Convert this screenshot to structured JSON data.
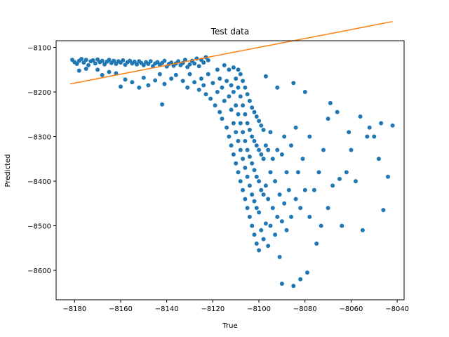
{
  "chart_data": {
    "type": "scatter",
    "title": "Test data",
    "xlabel": "True",
    "ylabel": "Predicted",
    "xlim": [
      -8188,
      -8037
    ],
    "ylim": [
      -8666,
      -8085
    ],
    "x_ticks": [
      -8180,
      -8160,
      -8140,
      -8120,
      -8100,
      -8080,
      -8060,
      -8040
    ],
    "y_ticks": [
      -8100,
      -8200,
      -8300,
      -8400,
      -8500,
      -8600
    ],
    "x_tick_labels": [
      "−8180",
      "−8160",
      "−8140",
      "−8120",
      "−8100",
      "−8080",
      "−8060",
      "−8040"
    ],
    "y_tick_labels": [
      "−8100",
      "−8200",
      "−8300",
      "−8400",
      "−8500",
      "−8600"
    ],
    "grid": false,
    "series": [
      {
        "type": "scatter",
        "color": "#1f77b4",
        "points": [
          [
            -8181,
            -8128
          ],
          [
            -8180,
            -8133
          ],
          [
            -8179,
            -8137
          ],
          [
            -8178,
            -8130
          ],
          [
            -8177,
            -8126
          ],
          [
            -8176,
            -8134
          ],
          [
            -8175,
            -8128
          ],
          [
            -8174,
            -8140
          ],
          [
            -8173,
            -8131
          ],
          [
            -8172,
            -8129
          ],
          [
            -8171,
            -8136
          ],
          [
            -8170,
            -8127
          ],
          [
            -8169,
            -8133
          ],
          [
            -8168,
            -8130
          ],
          [
            -8167,
            -8138
          ],
          [
            -8166,
            -8132
          ],
          [
            -8165,
            -8128
          ],
          [
            -8164,
            -8135
          ],
          [
            -8163,
            -8130
          ],
          [
            -8162,
            -8137
          ],
          [
            -8161,
            -8131
          ],
          [
            -8160,
            -8134
          ],
          [
            -8159,
            -8129
          ],
          [
            -8158,
            -8139
          ],
          [
            -8157,
            -8133
          ],
          [
            -8156,
            -8130
          ],
          [
            -8155,
            -8136
          ],
          [
            -8154,
            -8132
          ],
          [
            -8153,
            -8138
          ],
          [
            -8152,
            -8131
          ],
          [
            -8151,
            -8135
          ],
          [
            -8150,
            -8140
          ],
          [
            -8149,
            -8133
          ],
          [
            -8148,
            -8137
          ],
          [
            -8147,
            -8131
          ],
          [
            -8146,
            -8142
          ],
          [
            -8145,
            -8136
          ],
          [
            -8144,
            -8133
          ],
          [
            -8143,
            -8139
          ],
          [
            -8142,
            -8135
          ],
          [
            -8141,
            -8130
          ],
          [
            -8140,
            -8143
          ],
          [
            -8139,
            -8137
          ],
          [
            -8138,
            -8134
          ],
          [
            -8137,
            -8141
          ],
          [
            -8136,
            -8136
          ],
          [
            -8135,
            -8131
          ],
          [
            -8134,
            -8140
          ],
          [
            -8133,
            -8135
          ],
          [
            -8132,
            -8128
          ],
          [
            -8131,
            -8144
          ],
          [
            -8130,
            -8138
          ],
          [
            -8129,
            -8130
          ],
          [
            -8128,
            -8136
          ],
          [
            -8127,
            -8125
          ],
          [
            -8126,
            -8142
          ],
          [
            -8125,
            -8128
          ],
          [
            -8124,
            -8134
          ],
          [
            -8123,
            -8122
          ],
          [
            -8122,
            -8129
          ],
          [
            -8160,
            -8188
          ],
          [
            -8158,
            -8172
          ],
          [
            -8155,
            -8178
          ],
          [
            -8152,
            -8190
          ],
          [
            -8150,
            -8168
          ],
          [
            -8148,
            -8185
          ],
          [
            -8145,
            -8174
          ],
          [
            -8143,
            -8160
          ],
          [
            -8141,
            -8182
          ],
          [
            -8138,
            -8170
          ],
          [
            -8168,
            -8162
          ],
          [
            -8165,
            -8155
          ],
          [
            -8162,
            -8158
          ],
          [
            -8170,
            -8150
          ],
          [
            -8175,
            -8148
          ],
          [
            -8178,
            -8152
          ],
          [
            -8142,
            -8228
          ],
          [
            -8136,
            -8162
          ],
          [
            -8133,
            -8175
          ],
          [
            -8131,
            -8190
          ],
          [
            -8130,
            -8160
          ],
          [
            -8128,
            -8178
          ],
          [
            -8126,
            -8195
          ],
          [
            -8125,
            -8170
          ],
          [
            -8124,
            -8185
          ],
          [
            -8123,
            -8205
          ],
          [
            -8122,
            -8160
          ],
          [
            -8121,
            -8215
          ],
          [
            -8120,
            -8180
          ],
          [
            -8119,
            -8230
          ],
          [
            -8118,
            -8150
          ],
          [
            -8118,
            -8200
          ],
          [
            -8117,
            -8245
          ],
          [
            -8117,
            -8170
          ],
          [
            -8116,
            -8260
          ],
          [
            -8116,
            -8190
          ],
          [
            -8115,
            -8140
          ],
          [
            -8115,
            -8220
          ],
          [
            -8114,
            -8280
          ],
          [
            -8114,
            -8175
          ],
          [
            -8113,
            -8300
          ],
          [
            -8113,
            -8210
          ],
          [
            -8113,
            -8150
          ],
          [
            -8112,
            -8320
          ],
          [
            -8112,
            -8240
          ],
          [
            -8112,
            -8185
          ],
          [
            -8111,
            -8340
          ],
          [
            -8111,
            -8270
          ],
          [
            -8111,
            -8200
          ],
          [
            -8111,
            -8145
          ],
          [
            -8110,
            -8360
          ],
          [
            -8110,
            -8290
          ],
          [
            -8110,
            -8230
          ],
          [
            -8110,
            -8170
          ],
          [
            -8109,
            -8380
          ],
          [
            -8109,
            -8310
          ],
          [
            -8109,
            -8250
          ],
          [
            -8109,
            -8190
          ],
          [
            -8109,
            -8150
          ],
          [
            -8108,
            -8400
          ],
          [
            -8108,
            -8330
          ],
          [
            -8108,
            -8270
          ],
          [
            -8108,
            -8210
          ],
          [
            -8108,
            -8160
          ],
          [
            -8107,
            -8420
          ],
          [
            -8107,
            -8350
          ],
          [
            -8107,
            -8290
          ],
          [
            -8107,
            -8230
          ],
          [
            -8107,
            -8175
          ],
          [
            -8106,
            -8440
          ],
          [
            -8106,
            -8370
          ],
          [
            -8106,
            -8310
          ],
          [
            -8106,
            -8250
          ],
          [
            -8106,
            -8190
          ],
          [
            -8105,
            -8460
          ],
          [
            -8105,
            -8390
          ],
          [
            -8105,
            -8330
          ],
          [
            -8105,
            -8270
          ],
          [
            -8105,
            -8205
          ],
          [
            -8104,
            -8480
          ],
          [
            -8104,
            -8410
          ],
          [
            -8104,
            -8345
          ],
          [
            -8104,
            -8285
          ],
          [
            -8104,
            -8220
          ],
          [
            -8103,
            -8500
          ],
          [
            -8103,
            -8430
          ],
          [
            -8103,
            -8360
          ],
          [
            -8103,
            -8300
          ],
          [
            -8103,
            -8235
          ],
          [
            -8102,
            -8520
          ],
          [
            -8102,
            -8445
          ],
          [
            -8102,
            -8375
          ],
          [
            -8102,
            -8310
          ],
          [
            -8102,
            -8245
          ],
          [
            -8101,
            -8540
          ],
          [
            -8101,
            -8460
          ],
          [
            -8101,
            -8390
          ],
          [
            -8101,
            -8320
          ],
          [
            -8101,
            -8255
          ],
          [
            -8100,
            -8555
          ],
          [
            -8100,
            -8470
          ],
          [
            -8100,
            -8400
          ],
          [
            -8100,
            -8330
          ],
          [
            -8100,
            -8265
          ],
          [
            -8099,
            -8510
          ],
          [
            -8099,
            -8420
          ],
          [
            -8099,
            -8340
          ],
          [
            -8099,
            -8275
          ],
          [
            -8098,
            -8530
          ],
          [
            -8098,
            -8430
          ],
          [
            -8098,
            -8350
          ],
          [
            -8098,
            -8285
          ],
          [
            -8097,
            -8495
          ],
          [
            -8097,
            -8410
          ],
          [
            -8097,
            -8320
          ],
          [
            -8096,
            -8545
          ],
          [
            -8096,
            -8440
          ],
          [
            -8096,
            -8330
          ],
          [
            -8095,
            -8500
          ],
          [
            -8095,
            -8380
          ],
          [
            -8095,
            -8290
          ],
          [
            -8094,
            -8460
          ],
          [
            -8094,
            -8350
          ],
          [
            -8093,
            -8520
          ],
          [
            -8093,
            -8400
          ],
          [
            -8092,
            -8480
          ],
          [
            -8092,
            -8330
          ],
          [
            -8091,
            -8570
          ],
          [
            -8091,
            -8430
          ],
          [
            -8090,
            -8630
          ],
          [
            -8090,
            -8490
          ],
          [
            -8090,
            -8340
          ],
          [
            -8089,
            -8450
          ],
          [
            -8089,
            -8300
          ],
          [
            -8088,
            -8510
          ],
          [
            -8088,
            -8380
          ],
          [
            -8087,
            -8420
          ],
          [
            -8086,
            -8480
          ],
          [
            -8086,
            -8320
          ],
          [
            -8085,
            -8635
          ],
          [
            -8084,
            -8440
          ],
          [
            -8084,
            -8280
          ],
          [
            -8083,
            -8380
          ],
          [
            -8082,
            -8620
          ],
          [
            -8082,
            -8460
          ],
          [
            -8081,
            -8350
          ],
          [
            -8080,
            -8420
          ],
          [
            -8079,
            -8605
          ],
          [
            -8078,
            -8480
          ],
          [
            -8078,
            -8300
          ],
          [
            -8076,
            -8420
          ],
          [
            -8075,
            -8540
          ],
          [
            -8074,
            -8380
          ],
          [
            -8073,
            -8500
          ],
          [
            -8072,
            -8330
          ],
          [
            -8070,
            -8260
          ],
          [
            -8070,
            -8460
          ],
          [
            -8068,
            -8410
          ],
          [
            -8066,
            -8245
          ],
          [
            -8065,
            -8395
          ],
          [
            -8064,
            -8500
          ],
          [
            -8062,
            -8380
          ],
          [
            -8060,
            -8330
          ],
          [
            -8058,
            -8400
          ],
          [
            -8056,
            -8255
          ],
          [
            -8055,
            -8510
          ],
          [
            -8053,
            -8300
          ],
          [
            -8050,
            -8300
          ],
          [
            -8048,
            -8350
          ],
          [
            -8046,
            -8465
          ],
          [
            -8044,
            -8390
          ],
          [
            -8042,
            -8275
          ],
          [
            -8047,
            -8270
          ],
          [
            -8052,
            -8280
          ],
          [
            -8061,
            -8290
          ],
          [
            -8069,
            -8225
          ],
          [
            -8080,
            -8200
          ],
          [
            -8085,
            -8180
          ],
          [
            -8092,
            -8190
          ],
          [
            -8097,
            -8165
          ]
        ]
      },
      {
        "type": "line",
        "color": "#ff7f0e",
        "points": [
          [
            -8182,
            -8182
          ],
          [
            -8042,
            -8042
          ]
        ]
      }
    ]
  }
}
